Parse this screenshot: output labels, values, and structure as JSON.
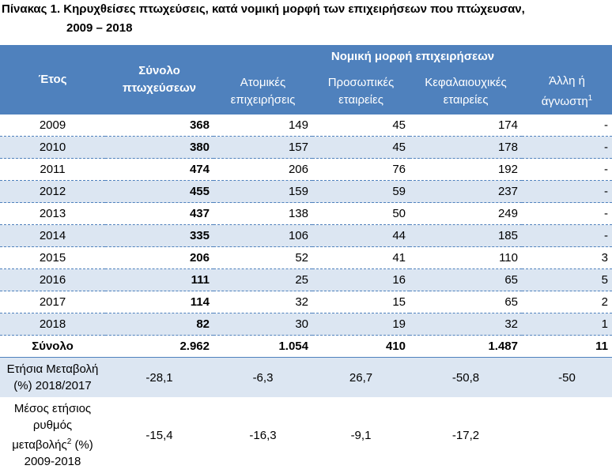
{
  "title": [
    "Πίνακας 1. Κηρυχθείσες πτωχεύσεις, κατά νομική μορφή των επιχειρήσεων που πτώχευσαν,",
    "2009 – 2018"
  ],
  "table": {
    "header": {
      "year": "Έτος",
      "total": "Σύνολο πτωχεύσεων",
      "group": "Νομική μορφή επιχειρήσεων",
      "columns": [
        {
          "text": "Ατομικές επιχειρήσεις"
        },
        {
          "text": "Προσωπικές εταιρείες"
        },
        {
          "text": "Κεφαλαιουχικές εταιρείες"
        },
        {
          "text": "Άλλη ή άγνωστη",
          "note": "1"
        }
      ]
    },
    "rows": [
      [
        "2009",
        "368",
        "149",
        "45",
        "174",
        "-"
      ],
      [
        "2010",
        "380",
        "157",
        "45",
        "178",
        "-"
      ],
      [
        "2011",
        "474",
        "206",
        "76",
        "192",
        "-"
      ],
      [
        "2012",
        "455",
        "159",
        "59",
        "237",
        "-"
      ],
      [
        "2013",
        "437",
        "138",
        "50",
        "249",
        "-"
      ],
      [
        "2014",
        "335",
        "106",
        "44",
        "185",
        "-"
      ],
      [
        "2015",
        "206",
        "52",
        "41",
        "110",
        "3"
      ],
      [
        "2016",
        "111",
        "25",
        "16",
        "65",
        "5"
      ],
      [
        "2017",
        "114",
        "32",
        "15",
        "65",
        "2"
      ],
      [
        "2018",
        "82",
        "30",
        "19",
        "32",
        "1"
      ]
    ],
    "total_row": [
      "Σύνολο",
      "2.962",
      "1.054",
      "410",
      "1.487",
      "11"
    ],
    "change_rows": [
      {
        "label": "Ετήσια Μεταβολή (%) 2018/2017",
        "values": [
          "-28,1",
          "-6,3",
          "26,7",
          "-50,8",
          "-50"
        ]
      },
      {
        "label": "Μέσος ετήσιος ρυθμός μεταβολής",
        "note": "2",
        "label_end": "(%) 2009-2018",
        "values": [
          "-15,4",
          "-16,3",
          "-9,1",
          "-17,2"
        ]
      }
    ]
  }
}
